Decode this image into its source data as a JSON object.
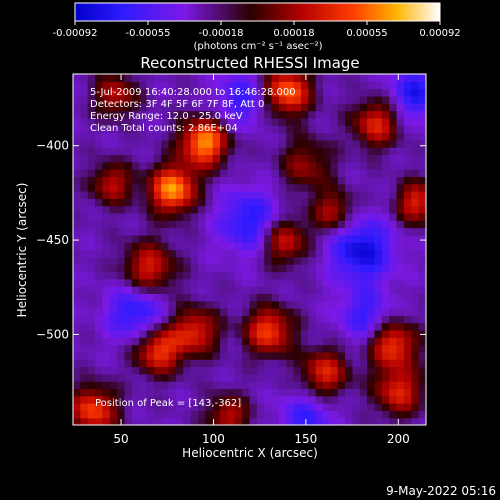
{
  "colorbar": {
    "ticks": [
      "-0.00092",
      "-0.00055",
      "-0.00018",
      "0.00018",
      "0.00055",
      "0.00092"
    ],
    "unit_label": "(photons cm⁻² s⁻¹ asec⁻²)",
    "min": -0.00092,
    "max": 0.00092
  },
  "chart_data": {
    "type": "heatmap",
    "title": "Reconstructed RHESSI Image",
    "xlabel": "Heliocentric X (arcsec)",
    "ylabel": "Heliocentric Y (arcsec)",
    "xlim": [
      24,
      215
    ],
    "ylim": [
      -548,
      -362
    ],
    "x_ticks": [
      50,
      100,
      150,
      200
    ],
    "y_ticks": [
      -400,
      -450,
      -500
    ],
    "annotations": [
      "5-Jul-2009 16:40:28.000 to 16:46:28.000",
      "Detectors: 3F 4F 5F 6F 7F 8F, Att 0",
      "Energy Range: 12.0 - 25.0 keV",
      "Clean    Total counts: 2.86E+04",
      "Position of Peak = [143,-362]"
    ],
    "peak": [
      143,
      -362
    ],
    "blobs": [
      {
        "x": 95,
        "y": -398,
        "amp": 0.0009,
        "s": 9
      },
      {
        "x": 78,
        "y": -423,
        "amp": 0.0009,
        "s": 9
      },
      {
        "x": 140,
        "y": -371,
        "amp": 0.0008,
        "s": 9
      },
      {
        "x": 150,
        "y": -410,
        "amp": 0.0004,
        "s": 10
      },
      {
        "x": 138,
        "y": -450,
        "amp": 0.0006,
        "s": 9
      },
      {
        "x": 188,
        "y": -388,
        "amp": 0.0006,
        "s": 9
      },
      {
        "x": 210,
        "y": -430,
        "amp": 0.0006,
        "s": 8
      },
      {
        "x": 65,
        "y": -465,
        "amp": 0.0006,
        "s": 10
      },
      {
        "x": 45,
        "y": -420,
        "amp": 0.0005,
        "s": 8
      },
      {
        "x": 70,
        "y": -508,
        "amp": 0.0007,
        "s": 9
      },
      {
        "x": 90,
        "y": -498,
        "amp": 0.0006,
        "s": 9
      },
      {
        "x": 130,
        "y": -498,
        "amp": 0.0007,
        "s": 9
      },
      {
        "x": 160,
        "y": -520,
        "amp": 0.0006,
        "s": 9
      },
      {
        "x": 197,
        "y": -505,
        "amp": 0.0007,
        "s": 9
      },
      {
        "x": 200,
        "y": -530,
        "amp": 0.0006,
        "s": 9
      },
      {
        "x": 35,
        "y": -540,
        "amp": 0.0007,
        "s": 9
      },
      {
        "x": 108,
        "y": -543,
        "amp": 0.0005,
        "s": 8
      },
      {
        "x": 47,
        "y": -373,
        "amp": 0.0005,
        "s": 8
      },
      {
        "x": 165,
        "y": -435,
        "amp": 0.0005,
        "s": 8
      },
      {
        "x": 180,
        "y": -455,
        "amp": -0.0006,
        "s": 12
      },
      {
        "x": 120,
        "y": -440,
        "amp": -0.0005,
        "s": 12
      },
      {
        "x": 58,
        "y": -488,
        "amp": -0.0005,
        "s": 11
      },
      {
        "x": 210,
        "y": -372,
        "amp": -0.0005,
        "s": 10
      },
      {
        "x": 115,
        "y": -375,
        "amp": -0.0004,
        "s": 10
      },
      {
        "x": 150,
        "y": -545,
        "amp": -0.0004,
        "s": 10
      },
      {
        "x": 182,
        "y": -490,
        "amp": -0.0004,
        "s": 10
      }
    ]
  },
  "footer": {
    "timestamp": "9-May-2022 05:16"
  }
}
